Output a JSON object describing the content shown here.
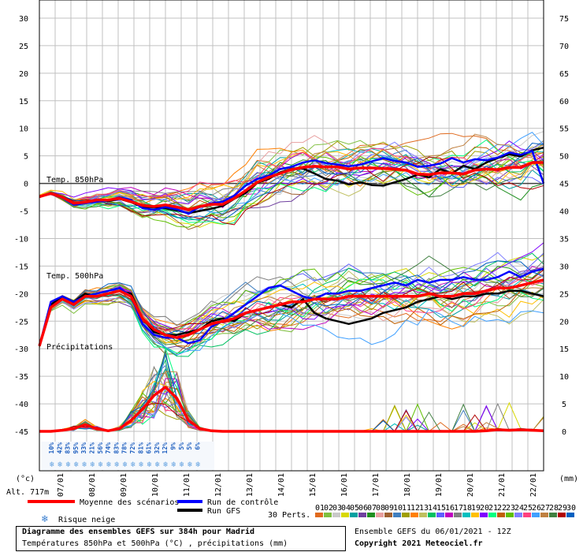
{
  "chart_data": {
    "type": "line",
    "title": "Diagramme des ensembles GEFS sur 384h pour Madrid",
    "subtitle": "Températures 850hPa et 500hPa (°C) , précipitations (mm)",
    "left_axis": {
      "unit": "(°c)",
      "ticks": [
        30,
        25,
        20,
        15,
        10,
        5,
        0,
        -5,
        -10,
        -15,
        -20,
        -25,
        -30,
        -35,
        -40,
        -45
      ]
    },
    "right_axis": {
      "unit": "(mm)",
      "ticks": [
        75,
        70,
        65,
        60,
        55,
        50,
        45,
        40,
        35,
        30,
        25,
        20,
        15,
        10,
        5,
        0
      ]
    },
    "x_days": [
      "07/01",
      "08/01",
      "09/01",
      "10/01",
      "11/01",
      "12/01",
      "13/01",
      "14/01",
      "15/01",
      "16/01",
      "17/01",
      "18/01",
      "19/01",
      "20/01",
      "21/01",
      "22/01"
    ],
    "panel_labels": {
      "t850": "Temp. 850hPa",
      "t500": "Temp. 500hPa",
      "precip": "Précipitations"
    },
    "snow_risk": [
      "10%",
      "42%",
      "83%",
      "95%",
      "33%",
      "21%",
      "56%",
      "74%",
      "83%",
      "78%",
      "72%",
      "81%",
      "61%",
      "32%",
      "12%",
      "9%",
      "5%",
      "5%",
      "6%"
    ],
    "series": [
      {
        "name": "Moyenne des scénarios",
        "color": "#ff0000"
      },
      {
        "name": "Run de contrôle",
        "color": "#0000ff"
      },
      {
        "name": "Run GFS",
        "color": "#000000"
      }
    ],
    "mean_t850": [
      -2.4,
      -1.8,
      -2.5,
      -3.6,
      -3.4,
      -3.0,
      -3.0,
      -2.7,
      -3.3,
      -4.0,
      -4.2,
      -3.9,
      -4.3,
      -4.8,
      -4.2,
      -3.8,
      -3.8,
      -2.7,
      -1.3,
      0.2,
      1.1,
      1.8,
      2.5,
      2.9,
      3.1,
      3.0,
      3.0,
      2.6,
      2.8,
      2.8,
      2.7,
      2.6,
      2.4,
      1.7,
      1.6,
      1.9,
      1.9,
      1.7,
      2.4,
      2.6,
      2.5,
      2.9,
      2.9,
      3.8,
      3.8
    ],
    "mean_t500": [
      -29.5,
      -22.5,
      -21.0,
      -22.0,
      -20.5,
      -20.5,
      -20.0,
      -19.5,
      -20.5,
      -24.5,
      -26.5,
      -27.5,
      -28.0,
      -27.5,
      -26.5,
      -25.5,
      -25.0,
      -24.5,
      -23.5,
      -23.0,
      -22.5,
      -22.0,
      -21.5,
      -21.5,
      -21.0,
      -21.0,
      -21.0,
      -20.5,
      -20.5,
      -20.5,
      -20.5,
      -20.5,
      -20.5,
      -20.5,
      -20.0,
      -20.5,
      -20.5,
      -20.0,
      -20.0,
      -19.5,
      -19.0,
      -19.0,
      -18.5,
      -18.0,
      -17.5
    ],
    "mean_precip_mm": [
      0,
      0,
      0.2,
      0.5,
      1.2,
      0.5,
      0.1,
      0.5,
      2,
      4,
      6.5,
      8,
      6,
      2,
      0.5,
      0.1,
      0,
      0,
      0,
      0,
      0,
      0,
      0,
      0,
      0,
      0,
      0,
      0,
      0,
      0,
      0,
      0,
      0,
      0,
      0,
      0,
      0,
      0,
      0,
      0.1,
      0.3,
      0.2,
      0.3,
      0.2,
      0.1
    ],
    "control_t850": [
      -2.4,
      -1.9,
      -2.6,
      -3.9,
      -3.6,
      -3.3,
      -3.1,
      -2.5,
      -3.0,
      -4.5,
      -4.8,
      -4.3,
      -4.7,
      -5.5,
      -4.2,
      -3.6,
      -3.3,
      -2.2,
      -0.4,
      0.8,
      1.4,
      2.6,
      3.0,
      3.8,
      4.2,
      3.7,
      3.4,
      3.1,
      3.4,
      4.0,
      4.6,
      4.1,
      3.8,
      3.0,
      3.2,
      3.6,
      4.6,
      3.8,
      4.4,
      4.2,
      4.7,
      5.6,
      5.2,
      5.9,
      0.0
    ],
    "control_t500": [
      -29.5,
      -21.5,
      -20.5,
      -21.5,
      -20.5,
      -20.0,
      -19.5,
      -19.0,
      -20.5,
      -25.5,
      -27.5,
      -28.0,
      -28.0,
      -29.0,
      -28.5,
      -26.0,
      -25.0,
      -23.5,
      -22.0,
      -20.5,
      -19.0,
      -18.5,
      -19.5,
      -20.5,
      -21.0,
      -20.0,
      -20.0,
      -19.5,
      -19.5,
      -19.0,
      -18.5,
      -18.0,
      -18.5,
      -17.5,
      -18.0,
      -17.5,
      -17.5,
      -17.0,
      -17.5,
      -17.5,
      -17.0,
      -16.0,
      -17.0,
      -16.0,
      -15.5
    ],
    "gfs_t850": [
      -2.4,
      -1.7,
      -2.4,
      -3.5,
      -3.4,
      -3.0,
      -3.2,
      -2.8,
      -3.4,
      -4.3,
      -4.3,
      -4.5,
      -4.9,
      -5.4,
      -5.0,
      -4.6,
      -4.1,
      -2.8,
      -1.7,
      0.1,
      0.8,
      2.0,
      2.6,
      2.7,
      1.8,
      0.8,
      0.5,
      -0.2,
      0.2,
      -0.3,
      -0.4,
      0.2,
      0.8,
      1.6,
      1.1,
      2.6,
      1.8,
      3.2,
      2.6,
      3.8,
      4.6,
      5.3,
      4.9,
      6.0,
      6.5
    ],
    "gfs_t500": [
      -29.5,
      -22.0,
      -20.5,
      -21.5,
      -20.0,
      -20.5,
      -20.0,
      -19.5,
      -20.0,
      -24.5,
      -27.0,
      -27.5,
      -27.5,
      -27.0,
      -26.5,
      -25.0,
      -24.5,
      -25.0,
      -23.5,
      -23.0,
      -22.5,
      -22.0,
      -22.5,
      -21.0,
      -23.5,
      -24.5,
      -25.0,
      -25.5,
      -25.0,
      -24.5,
      -23.5,
      -23.0,
      -22.5,
      -21.5,
      -21.0,
      -20.5,
      -21.0,
      -20.5,
      -20.5,
      -20.0,
      -20.0,
      -19.5,
      -19.5,
      -20.0,
      -20.5
    ],
    "perturbations": {
      "label": "30 Perts.",
      "ids": [
        "01",
        "02",
        "03",
        "04",
        "05",
        "06",
        "07",
        "08",
        "09",
        "10",
        "11",
        "12",
        "13",
        "14",
        "15",
        "16",
        "17",
        "18",
        "19",
        "20",
        "21",
        "22",
        "23",
        "24",
        "25",
        "26",
        "27",
        "28",
        "29",
        "30"
      ],
      "colors": [
        "#e06a1e",
        "#7fbf3f",
        "#c9c9c9",
        "#d8d800",
        "#00a0a0",
        "#6f3f9f",
        "#1f8f1f",
        "#e8a0a0",
        "#a06030",
        "#3f7fbf",
        "#9f9f00",
        "#ff7f00",
        "#bfbf5f",
        "#00c060",
        "#5f5fff",
        "#bf00bf",
        "#7f7f7f",
        "#00bfbf",
        "#ffbf00",
        "#7f00ff",
        "#00ff7f",
        "#bf5f00",
        "#5fbf00",
        "#8080ff",
        "#ff4080",
        "#40a0ff",
        "#c08040",
        "#408040",
        "#b00000",
        "#0060c0"
      ]
    },
    "grid": true
  },
  "legend": {
    "mean": "Moyenne des scénarios",
    "control": "Run de contrôle",
    "gfs": "Run GFS",
    "snow": "Risque neige",
    "perts": "30 Perts."
  },
  "altitude": "Alt. 717m",
  "footer": {
    "title": "Diagramme des ensembles GEFS sur 384h pour Madrid",
    "subtitle": "Températures 850hPa et 500hPa (°C) , précipitations (mm)",
    "run": "Ensemble GEFS du 06/01/2021 - 12Z",
    "copyright": "Copyright 2021 Meteociel.fr"
  }
}
